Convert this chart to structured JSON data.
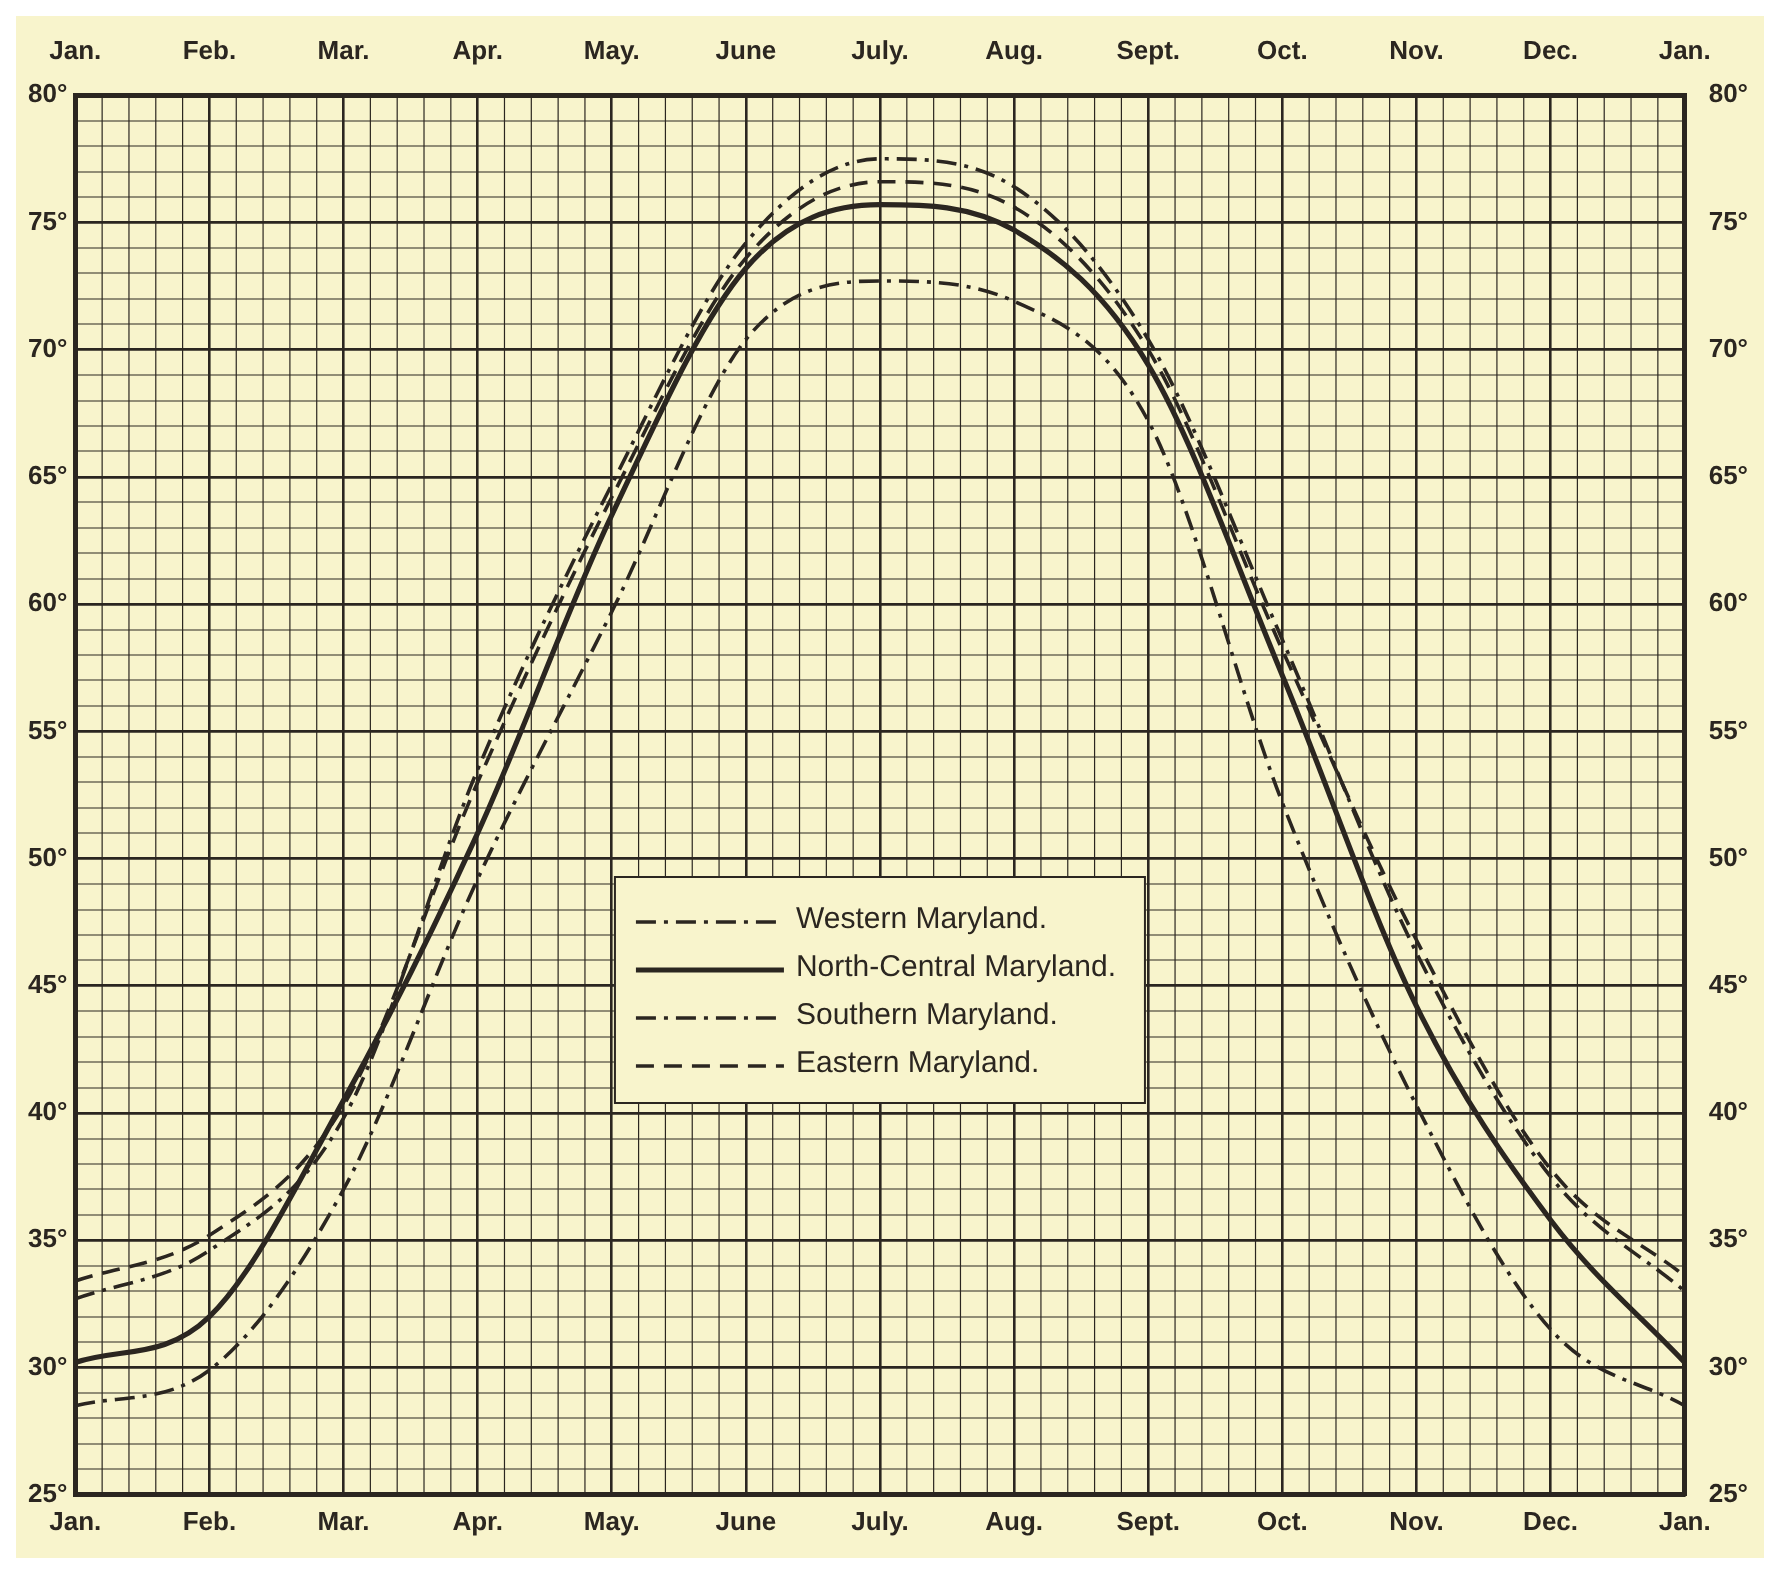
{
  "chart_data": {
    "type": "line",
    "categories": [
      "Jan.",
      "Feb.",
      "Mar.",
      "Apr.",
      "May.",
      "June",
      "July.",
      "Aug.",
      "Sept.",
      "Oct.",
      "Nov.",
      "Dec.",
      "Jan."
    ],
    "series": [
      {
        "name": "Western Maryland.",
        "color": "#2b2620",
        "line_style": "dashdot",
        "values": [
          28.5,
          29.9,
          37,
          49.2,
          59.7,
          70.4,
          72.7,
          71.9,
          67.2,
          52.2,
          40.3,
          31.5,
          28.5
        ]
      },
      {
        "name": "North-Central Maryland.",
        "color": "#2b2620",
        "line_style": "solid",
        "values": [
          30.2,
          32.0,
          40.5,
          51,
          63.5,
          73.2,
          75.7,
          74.7,
          69.4,
          57.2,
          44.2,
          35.8,
          30.2
        ]
      },
      {
        "name": "Southern Maryland.",
        "color": "#2b2620",
        "line_style": "dashdot",
        "values": [
          32.7,
          34.6,
          39.8,
          53.5,
          64.7,
          74.2,
          77.5,
          76.4,
          70.4,
          58.6,
          46.3,
          37.5,
          33.0
        ]
      },
      {
        "name": "Eastern Maryland.",
        "color": "#2b2620",
        "line_style": "dashed",
        "values": [
          33.4,
          35.2,
          40.3,
          53,
          64.2,
          73.6,
          76.6,
          75.6,
          70,
          58.2,
          46.8,
          37.8,
          33.6
        ]
      }
    ],
    "ylim": [
      25,
      80
    ],
    "yticks": [
      {
        "value": 25,
        "label": "25°"
      },
      {
        "value": 26,
        "label": null
      },
      {
        "value": 27,
        "label": null
      },
      {
        "value": 28,
        "label": null
      },
      {
        "value": 29,
        "label": null
      },
      {
        "value": 30,
        "label": "30°"
      },
      {
        "value": 31,
        "label": null
      },
      {
        "value": 32,
        "label": null
      },
      {
        "value": 33,
        "label": null
      },
      {
        "value": 34,
        "label": null
      },
      {
        "value": 35,
        "label": "35°"
      },
      {
        "value": 36,
        "label": null
      },
      {
        "value": 37,
        "label": null
      },
      {
        "value": 38,
        "label": null
      },
      {
        "value": 39,
        "label": null
      },
      {
        "value": 40,
        "label": "40°"
      },
      {
        "value": 41,
        "label": null
      },
      {
        "value": 42,
        "label": null
      },
      {
        "value": 43,
        "label": null
      },
      {
        "value": 44,
        "label": null
      },
      {
        "value": 45,
        "label": "45°"
      },
      {
        "value": 46,
        "label": null
      },
      {
        "value": 47,
        "label": null
      },
      {
        "value": 48,
        "label": null
      },
      {
        "value": 49,
        "label": null
      },
      {
        "value": 50,
        "label": "50°"
      },
      {
        "value": 51,
        "label": null
      },
      {
        "value": 52,
        "label": null
      },
      {
        "value": 53,
        "label": null
      },
      {
        "value": 54,
        "label": null
      },
      {
        "value": 55,
        "label": "55°"
      },
      {
        "value": 56,
        "label": null
      },
      {
        "value": 57,
        "label": null
      },
      {
        "value": 58,
        "label": null
      },
      {
        "value": 59,
        "label": null
      },
      {
        "value": 60,
        "label": "60°"
      },
      {
        "value": 61,
        "label": null
      },
      {
        "value": 62,
        "label": null
      },
      {
        "value": 63,
        "label": null
      },
      {
        "value": 64,
        "label": null
      },
      {
        "value": 65,
        "label": "65°"
      },
      {
        "value": 66,
        "label": null
      },
      {
        "value": 67,
        "label": null
      },
      {
        "value": 68,
        "label": null
      },
      {
        "value": 69,
        "label": null
      },
      {
        "value": 70,
        "label": "70°"
      },
      {
        "value": 71,
        "label": null
      },
      {
        "value": 72,
        "label": null
      },
      {
        "value": 73,
        "label": null
      },
      {
        "value": 74,
        "label": null
      },
      {
        "value": 75,
        "label": "75°"
      },
      {
        "value": 76,
        "label": null
      },
      {
        "value": 77,
        "label": null
      },
      {
        "value": 78,
        "label": null
      },
      {
        "value": 79,
        "label": null
      },
      {
        "value": 80,
        "label": "80°"
      }
    ],
    "y2lim": [
      25,
      80
    ],
    "y2ticks": [
      {
        "value": 25,
        "label": "25°"
      },
      {
        "value": 30,
        "label": "30°"
      },
      {
        "value": 35,
        "label": "35°"
      },
      {
        "value": 40,
        "label": "40°"
      },
      {
        "value": 45,
        "label": "45°"
      },
      {
        "value": 50,
        "label": "50°"
      },
      {
        "value": 55,
        "label": "55°"
      },
      {
        "value": 60,
        "label": "60°"
      },
      {
        "value": 65,
        "label": "65°"
      },
      {
        "value": 70,
        "label": "70°"
      },
      {
        "value": 75,
        "label": "75°"
      },
      {
        "value": 80,
        "label": "80°"
      }
    ],
    "grid": true,
    "legend": "center"
  }
}
